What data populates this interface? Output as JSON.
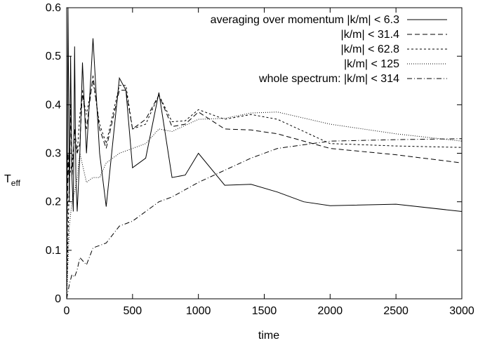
{
  "chart_data": {
    "type": "line",
    "xlabel": "time",
    "ylabel": "T",
    "ylabel_sub": "eff",
    "xlim": [
      0,
      3000
    ],
    "ylim": [
      0,
      0.6
    ],
    "xticks": [
      "0",
      "500",
      "1000",
      "1500",
      "2000",
      "2500",
      "3000"
    ],
    "yticks": [
      "0",
      "0.1",
      "0.2",
      "0.3",
      "0.4",
      "0.5",
      "0.6"
    ],
    "grid": false,
    "legend_position": "top-right",
    "series": [
      {
        "name": "averaging over momentum |k/m| < 6.3",
        "style": "solid",
        "x": [
          0,
          10,
          20,
          30,
          40,
          50,
          60,
          70,
          80,
          100,
          120,
          150,
          200,
          250,
          300,
          400,
          450,
          500,
          600,
          700,
          800,
          900,
          1000,
          1200,
          1400,
          1600,
          1800,
          2000,
          2500,
          3000
        ],
        "y": [
          0.0,
          0.6,
          0.2,
          0.5,
          0.25,
          0.18,
          0.52,
          0.25,
          0.18,
          0.3,
          0.487,
          0.3,
          0.537,
          0.3,
          0.19,
          0.455,
          0.43,
          0.27,
          0.29,
          0.425,
          0.25,
          0.255,
          0.3,
          0.234,
          0.236,
          0.22,
          0.2,
          0.192,
          0.195,
          0.18
        ]
      },
      {
        "name": "|k/m| < 31.4",
        "style": "dashed",
        "x": [
          0,
          10,
          20,
          30,
          40,
          50,
          60,
          80,
          100,
          120,
          150,
          200,
          250,
          300,
          400,
          450,
          500,
          600,
          700,
          800,
          900,
          1000,
          1200,
          1400,
          1600,
          2000,
          2500,
          3000
        ],
        "y": [
          0.0,
          0.3,
          0.22,
          0.4,
          0.25,
          0.3,
          0.35,
          0.3,
          0.32,
          0.43,
          0.35,
          0.46,
          0.35,
          0.31,
          0.43,
          0.43,
          0.35,
          0.37,
          0.42,
          0.355,
          0.36,
          0.385,
          0.35,
          0.348,
          0.34,
          0.31,
          0.297,
          0.28
        ]
      },
      {
        "name": "|k/m| < 62.8",
        "style": "short-dash",
        "x": [
          0,
          20,
          40,
          60,
          80,
          100,
          120,
          150,
          200,
          250,
          300,
          400,
          450,
          500,
          600,
          700,
          800,
          900,
          1000,
          1200,
          1400,
          1600,
          2000,
          2500,
          3000
        ],
        "y": [
          0.0,
          0.25,
          0.28,
          0.33,
          0.3,
          0.38,
          0.42,
          0.38,
          0.45,
          0.36,
          0.32,
          0.44,
          0.44,
          0.35,
          0.36,
          0.42,
          0.365,
          0.367,
          0.39,
          0.37,
          0.38,
          0.37,
          0.32,
          0.315,
          0.312
        ]
      },
      {
        "name": "|k/m| < 125",
        "style": "dotted",
        "x": [
          0,
          20,
          40,
          60,
          80,
          100,
          150,
          200,
          250,
          300,
          400,
          500,
          600,
          700,
          800,
          1000,
          1200,
          1400,
          1600,
          2000,
          2500,
          3000
        ],
        "y": [
          0.0,
          0.15,
          0.2,
          0.22,
          0.25,
          0.3,
          0.24,
          0.25,
          0.25,
          0.28,
          0.3,
          0.31,
          0.32,
          0.35,
          0.345,
          0.37,
          0.372,
          0.383,
          0.385,
          0.36,
          0.34,
          0.325
        ]
      },
      {
        "name": "whole spectrum: |k/m| < 314",
        "style": "dash-dot",
        "x": [
          0,
          20,
          40,
          60,
          80,
          100,
          150,
          200,
          300,
          400,
          500,
          600,
          700,
          800,
          1000,
          1200,
          1400,
          1600,
          2000,
          2500,
          3000
        ],
        "y": [
          0.0,
          0.03,
          0.05,
          0.045,
          0.06,
          0.085,
          0.07,
          0.105,
          0.115,
          0.15,
          0.16,
          0.18,
          0.2,
          0.21,
          0.24,
          0.265,
          0.29,
          0.31,
          0.325,
          0.328,
          0.33
        ]
      }
    ]
  }
}
